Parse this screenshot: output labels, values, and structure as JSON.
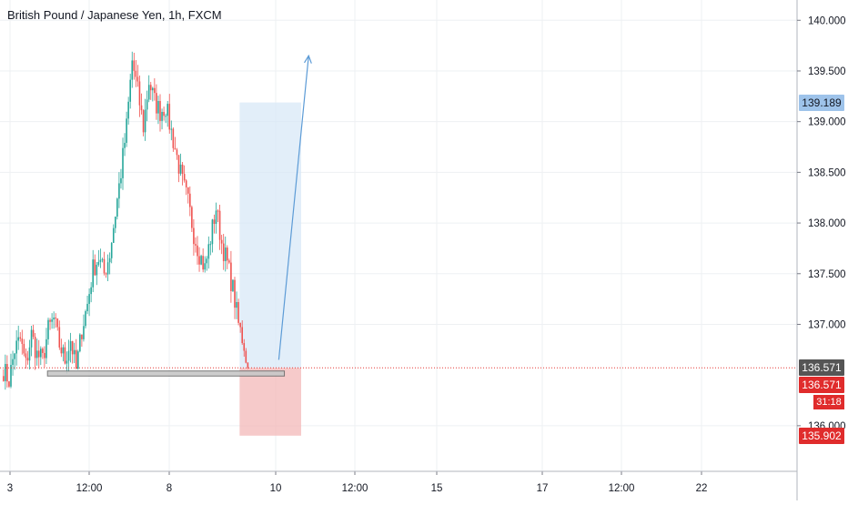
{
  "header": {
    "symbol_title": "British Pound / Japanese Yen, 1h, FXCM"
  },
  "colors": {
    "up_candle": "#26a69a",
    "down_candle": "#ef5350",
    "target_zone": "#d6e7f7",
    "stop_zone": "#f3b8b8",
    "projection_line": "#5c9bd6",
    "last_price_line": "#e53935",
    "support_box": "#c8c8c8",
    "grid": "#eef0f3",
    "target_tag": "#9ec3ea",
    "last_price_tag": "#555555",
    "stop_tag": "#e02c2c"
  },
  "price_axis": {
    "ticks": [
      "140.000",
      "139.500",
      "139.000",
      "138.500",
      "138.000",
      "137.500",
      "137.000",
      "136.000"
    ],
    "tags": {
      "target": "139.189",
      "last_price": "136.571",
      "current": "136.571",
      "countdown": "31:18",
      "stop": "135.902"
    }
  },
  "time_axis": {
    "ticks": [
      "3",
      "12:00",
      "8",
      "10",
      "12:00",
      "15",
      "17",
      "12:00",
      "22"
    ]
  },
  "chart_data": {
    "type": "candlestick",
    "title": "British Pound / Japanese Yen, 1h, FXCM",
    "xlabel": "",
    "ylabel": "",
    "ylim": [
      135.55,
      140.2
    ],
    "x_range_bars": [
      0,
      220
    ],
    "grid": true,
    "series": [
      {
        "name": "British Pound / Japanese Yen, 1h, FXCM",
        "anchors": [
          [
            0,
            136.55
          ],
          [
            3,
            136.45
          ],
          [
            6,
            136.75
          ],
          [
            9,
            136.85
          ],
          [
            12,
            136.6
          ],
          [
            15,
            136.9
          ],
          [
            18,
            136.7
          ],
          [
            21,
            136.65
          ],
          [
            24,
            136.95
          ],
          [
            27,
            137.05
          ],
          [
            30,
            136.8
          ],
          [
            33,
            136.65
          ],
          [
            36,
            136.85
          ],
          [
            39,
            136.55
          ],
          [
            42,
            136.95
          ],
          [
            45,
            137.2
          ],
          [
            48,
            137.55
          ],
          [
            51,
            137.65
          ],
          [
            54,
            137.5
          ],
          [
            57,
            137.7
          ],
          [
            60,
            138.1
          ],
          [
            63,
            138.5
          ],
          [
            66,
            138.95
          ],
          [
            69,
            139.6
          ],
          [
            72,
            139.3
          ],
          [
            75,
            138.95
          ],
          [
            78,
            139.4
          ],
          [
            81,
            139.2
          ],
          [
            84,
            139.1
          ],
          [
            87,
            139.15
          ],
          [
            90,
            138.9
          ],
          [
            93,
            138.65
          ],
          [
            96,
            138.4
          ],
          [
            99,
            138.2
          ],
          [
            102,
            137.9
          ],
          [
            105,
            137.7
          ],
          [
            108,
            137.55
          ],
          [
            111,
            137.85
          ],
          [
            114,
            138.15
          ],
          [
            117,
            137.8
          ],
          [
            120,
            137.6
          ],
          [
            123,
            137.35
          ],
          [
            126,
            137.0
          ],
          [
            129,
            136.8
          ],
          [
            131,
            136.571
          ]
        ]
      }
    ],
    "annotations": {
      "long_position": {
        "entry": 136.571,
        "target": 139.189,
        "stop": 135.902,
        "start_bar": 127,
        "end_bar": 160
      },
      "support_zone": {
        "top": 136.54,
        "bottom": 136.49,
        "start_bar": 24,
        "end_bar": 151
      },
      "projection_arrow": {
        "from": [
          148,
          136.65
        ],
        "to": [
          164,
          139.65
        ]
      },
      "last_price_line": 136.571
    }
  }
}
